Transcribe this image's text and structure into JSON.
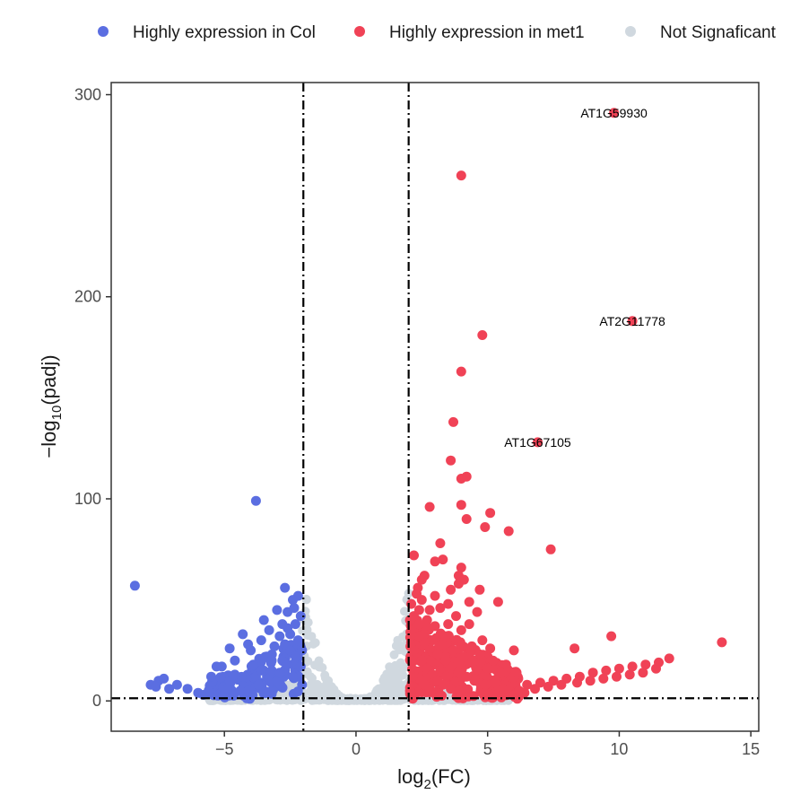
{
  "chart_data": {
    "type": "scatter",
    "xlim": [
      -9.3,
      15.3
    ],
    "ylim": [
      -15,
      306
    ],
    "x_ticks": [
      -5,
      0,
      5,
      10,
      15
    ],
    "y_ticks": [
      0,
      100,
      200,
      300
    ],
    "x_tick_labels": [
      "−5",
      "0",
      "5",
      "10",
      "15"
    ],
    "y_tick_labels": [
      "0",
      "100",
      "200",
      "300"
    ],
    "xlabel": {
      "main": "log",
      "sub": "2",
      "suffix": "(FC)"
    },
    "ylabel": {
      "prefix": "−log",
      "sub": "10",
      "suffix": "(padj)"
    },
    "legend_position": "top",
    "grid": false,
    "thresholds": {
      "fc_left": -2,
      "fc_right": 2,
      "padj_line": 1.3
    },
    "series": [
      {
        "name": "Highly expression in Col",
        "color": "#5b6ee1",
        "points": [
          [
            -8.4,
            57
          ],
          [
            -7.8,
            8
          ],
          [
            -7.5,
            10
          ],
          [
            -7.3,
            11
          ],
          [
            -7.6,
            7
          ],
          [
            -7.1,
            6
          ],
          [
            -6.8,
            8
          ],
          [
            -6.4,
            6
          ],
          [
            -6.0,
            4
          ],
          [
            -5.8,
            3
          ],
          [
            -5.6,
            5
          ],
          [
            -5.5,
            12
          ],
          [
            -5.3,
            17
          ],
          [
            -5.1,
            17
          ],
          [
            -4.9,
            6
          ],
          [
            -4.8,
            10
          ],
          [
            -4.6,
            13
          ],
          [
            -4.4,
            5
          ],
          [
            -4.8,
            26
          ],
          [
            -4.6,
            20
          ],
          [
            -4.3,
            33
          ],
          [
            -4.1,
            28
          ],
          [
            -4.0,
            25
          ],
          [
            -3.9,
            18
          ],
          [
            -3.8,
            12
          ],
          [
            -3.7,
            8
          ],
          [
            -3.6,
            30
          ],
          [
            -3.5,
            40
          ],
          [
            -3.4,
            22
          ],
          [
            -3.3,
            35
          ],
          [
            -3.2,
            15
          ],
          [
            -3.1,
            27
          ],
          [
            -3.0,
            45
          ],
          [
            -3.0,
            10
          ],
          [
            -2.9,
            32
          ],
          [
            -2.8,
            38
          ],
          [
            -2.8,
            20
          ],
          [
            -2.7,
            28
          ],
          [
            -2.7,
            56
          ],
          [
            -2.6,
            18
          ],
          [
            -2.6,
            44
          ],
          [
            -2.5,
            33
          ],
          [
            -2.5,
            25
          ],
          [
            -2.4,
            50
          ],
          [
            -2.4,
            12
          ],
          [
            -2.3,
            38
          ],
          [
            -2.3,
            22
          ],
          [
            -2.2,
            52
          ],
          [
            -2.2,
            30
          ],
          [
            -2.1,
            42
          ],
          [
            -2.1,
            17
          ],
          [
            -2.05,
            25
          ],
          [
            -2.05,
            8
          ],
          [
            -3.8,
            99
          ],
          [
            -4.1,
            5
          ],
          [
            -3.6,
            15
          ],
          [
            -3.2,
            20
          ],
          [
            -2.9,
            14
          ],
          [
            -2.6,
            36
          ],
          [
            -2.35,
            46
          ]
        ]
      },
      {
        "name": "Highly expression in met1",
        "color": "#f04256",
        "points": [
          [
            9.8,
            291
          ],
          [
            4.0,
            260
          ],
          [
            10.5,
            188
          ],
          [
            4.8,
            181
          ],
          [
            4.0,
            163
          ],
          [
            3.7,
            138
          ],
          [
            6.9,
            128
          ],
          [
            3.6,
            119
          ],
          [
            4.2,
            111
          ],
          [
            4.0,
            110
          ],
          [
            2.8,
            96
          ],
          [
            4.0,
            97
          ],
          [
            4.2,
            90
          ],
          [
            5.1,
            93
          ],
          [
            4.9,
            86
          ],
          [
            5.8,
            84
          ],
          [
            7.4,
            75
          ],
          [
            3.2,
            78
          ],
          [
            3.3,
            70
          ],
          [
            3.0,
            69
          ],
          [
            2.6,
            62
          ],
          [
            2.2,
            72
          ],
          [
            4.0,
            66
          ],
          [
            3.9,
            62
          ],
          [
            4.1,
            60
          ],
          [
            4.3,
            49
          ],
          [
            4.7,
            55
          ],
          [
            5.4,
            49
          ],
          [
            4.6,
            44
          ],
          [
            3.9,
            58
          ],
          [
            3.6,
            55
          ],
          [
            3.5,
            48
          ],
          [
            3.0,
            52
          ],
          [
            2.8,
            45
          ],
          [
            2.5,
            60
          ],
          [
            2.3,
            53
          ],
          [
            2.2,
            42
          ],
          [
            2.1,
            48
          ],
          [
            2.05,
            40
          ],
          [
            2.2,
            35
          ],
          [
            2.4,
            38
          ],
          [
            2.6,
            33
          ],
          [
            2.9,
            30
          ],
          [
            3.3,
            28
          ],
          [
            3.7,
            25
          ],
          [
            4.1,
            22
          ],
          [
            4.5,
            20
          ],
          [
            5.0,
            16
          ],
          [
            5.5,
            14
          ],
          [
            6.0,
            12
          ],
          [
            4.3,
            38
          ],
          [
            4.8,
            30
          ],
          [
            5.1,
            26
          ],
          [
            6.0,
            25
          ],
          [
            8.3,
            26
          ],
          [
            9.7,
            32
          ],
          [
            13.9,
            29
          ],
          [
            2.1,
            28
          ],
          [
            2.3,
            24
          ],
          [
            2.5,
            20
          ],
          [
            2.7,
            16
          ],
          [
            2.9,
            13
          ],
          [
            3.1,
            10
          ],
          [
            3.3,
            8
          ],
          [
            3.6,
            6
          ],
          [
            3.9,
            5
          ],
          [
            2.2,
            15
          ],
          [
            2.4,
            11
          ],
          [
            2.6,
            8
          ],
          [
            2.8,
            6
          ],
          [
            3.0,
            4
          ],
          [
            3.2,
            3
          ],
          [
            2.1,
            7
          ],
          [
            2.3,
            4
          ],
          [
            6.5,
            8
          ],
          [
            7.0,
            9
          ],
          [
            7.5,
            10
          ],
          [
            8.0,
            11
          ],
          [
            8.5,
            12
          ],
          [
            9.0,
            14
          ],
          [
            9.5,
            15
          ],
          [
            10.0,
            16
          ],
          [
            10.5,
            17
          ],
          [
            11.0,
            18
          ],
          [
            11.5,
            19
          ],
          [
            11.9,
            21
          ],
          [
            6.2,
            5
          ],
          [
            6.8,
            6
          ],
          [
            7.3,
            7
          ],
          [
            7.8,
            8
          ],
          [
            8.4,
            9
          ],
          [
            8.9,
            10
          ],
          [
            9.4,
            11
          ],
          [
            9.9,
            12
          ],
          [
            10.4,
            13
          ],
          [
            10.9,
            14
          ],
          [
            11.4,
            16
          ],
          [
            5.8,
            7
          ],
          [
            6.4,
            4
          ],
          [
            5.3,
            9
          ],
          [
            5.6,
            6
          ],
          [
            4.9,
            8
          ],
          [
            4.5,
            10
          ],
          [
            4.2,
            12
          ],
          [
            3.9,
            14
          ],
          [
            3.6,
            17
          ],
          [
            3.4,
            20
          ],
          [
            3.1,
            23
          ],
          [
            2.8,
            26
          ],
          [
            2.6,
            29
          ],
          [
            2.4,
            32
          ],
          [
            2.2,
            25
          ],
          [
            2.1,
            20
          ],
          [
            2.15,
            12
          ],
          [
            2.05,
            5
          ],
          [
            3.5,
            38
          ],
          [
            3.8,
            42
          ],
          [
            3.2,
            46
          ],
          [
            2.7,
            40
          ],
          [
            2.4,
            45
          ],
          [
            4.4,
            27
          ],
          [
            4.7,
            23
          ],
          [
            5.2,
            20
          ],
          [
            5.7,
            18
          ],
          [
            6.1,
            14
          ],
          [
            4.0,
            35
          ],
          [
            3.4,
            32
          ],
          [
            3.0,
            37
          ],
          [
            2.5,
            50
          ],
          [
            2.35,
            56
          ]
        ]
      },
      {
        "name": "Not Signaficant",
        "color": "#d0d8df"
      }
    ],
    "annotations": [
      {
        "text": "AT1G59930",
        "x": 9.8,
        "y": 291
      },
      {
        "text": "AT2G11778",
        "x": 10.5,
        "y": 188
      },
      {
        "text": "AT1G67105",
        "x": 6.9,
        "y": 128
      }
    ]
  }
}
